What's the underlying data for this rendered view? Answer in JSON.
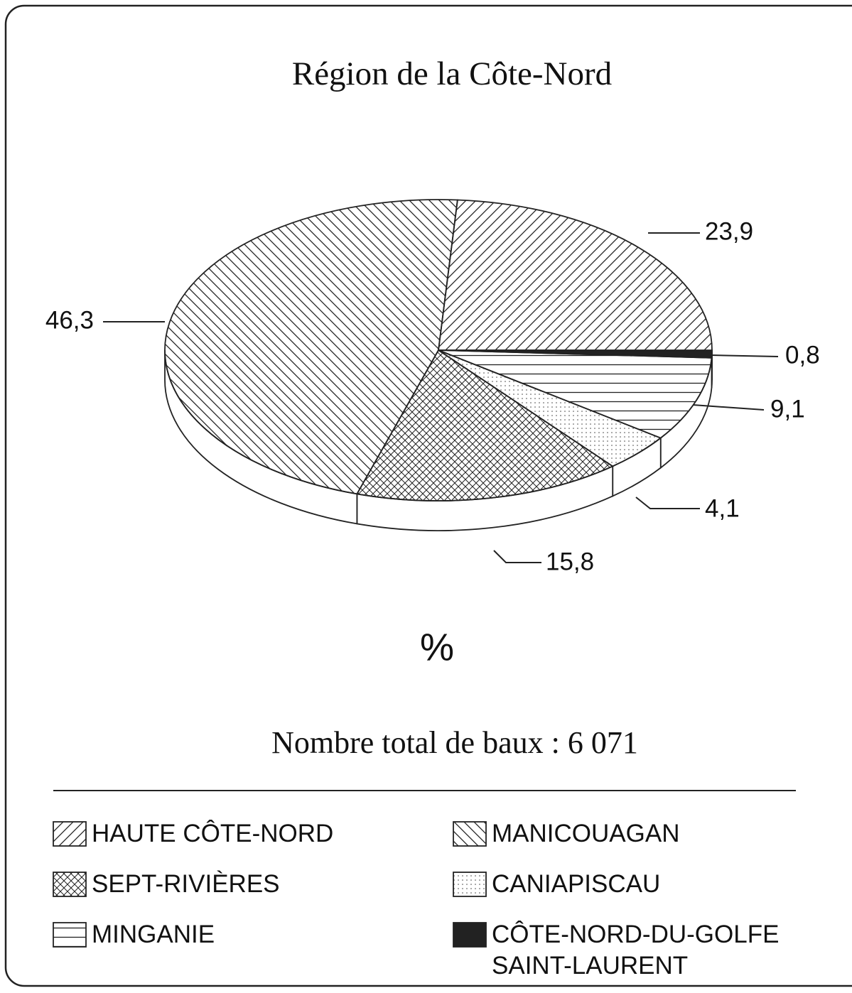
{
  "chart_data": {
    "type": "pie3d",
    "title": "Région de la Côte-Nord",
    "unit_label": "%",
    "note": "Nombre total de baux : 6 071",
    "categories": [
      "HAUTE CÔTE-NORD",
      "CÔTE-NORD-DU-GOLFE SAINT-LAURENT",
      "MINGANIE",
      "CANIAPISCAU",
      "SEPT-RIVIÈRES",
      "MANICOUAGAN"
    ],
    "values": [
      23.9,
      0.8,
      9.1,
      4.1,
      15.8,
      46.3
    ],
    "value_labels": [
      "23,9",
      "0,8",
      "9,1",
      "4,1",
      "15,8",
      "46,3"
    ],
    "patterns": [
      "diagonal-up",
      "solid",
      "horizontal",
      "dots",
      "crosshatch",
      "diagonal-down"
    ],
    "color": "#222222"
  }
}
